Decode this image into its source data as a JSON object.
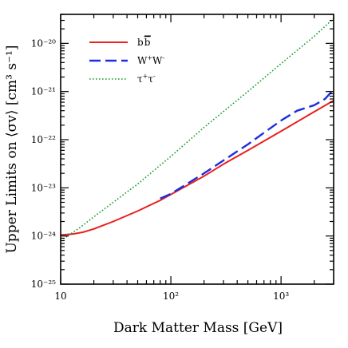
{
  "chart_data": {
    "type": "line",
    "xlabel": "Dark Matter Mass [GeV]",
    "ylabel": "Upper Limits on ⟨σv⟩ [cm³ s⁻¹]",
    "x_scale": "log",
    "y_scale": "log",
    "xlim": [
      10,
      3000
    ],
    "ylim": [
      1e-25,
      4e-20
    ],
    "x_ticks": [
      {
        "value": 10,
        "label": "10"
      },
      {
        "value": 100,
        "label": "10²"
      },
      {
        "value": 1000,
        "label": "10³"
      }
    ],
    "y_ticks": [
      {
        "value": 1e-25,
        "label": "10⁻²⁵"
      },
      {
        "value": 1e-24,
        "label": "10⁻²⁴"
      },
      {
        "value": 1e-23,
        "label": "10⁻²³"
      },
      {
        "value": 1e-22,
        "label": "10⁻²²"
      },
      {
        "value": 1e-21,
        "label": "10⁻²¹"
      },
      {
        "value": 1e-20,
        "label": "10⁻²⁰"
      }
    ],
    "legend_position": "top-left",
    "series": [
      {
        "name": "b̅b",
        "label_main": "b",
        "label_overline": "b",
        "color": "#e8201e",
        "style": "solid",
        "x": [
          10,
          13,
          16,
          20,
          30,
          50,
          80,
          100,
          200,
          300,
          500,
          1000,
          2000,
          3000
        ],
        "y": [
          1.05e-24,
          1.1e-24,
          1.2e-24,
          1.4e-24,
          2e-24,
          3.3e-24,
          5.5e-24,
          7.3e-24,
          1.75e-23,
          3.1e-23,
          6e-23,
          1.5e-22,
          3.8e-22,
          6.5e-22
        ]
      },
      {
        "name": "W⁺W⁻",
        "label_main": "W",
        "color": "#1a2ee0",
        "style": "dashed",
        "x": [
          80,
          100,
          200,
          300,
          500,
          1000,
          1400,
          2000,
          2500,
          3000
        ],
        "y": [
          6e-24,
          7.5e-24,
          2e-23,
          3.7e-23,
          8e-23,
          2.5e-22,
          4e-22,
          5.2e-22,
          7e-22,
          1.1e-21
        ]
      },
      {
        "name": "τ⁺τ⁻",
        "label_main": "τ",
        "color": "#149a2a",
        "style": "dotted",
        "x": [
          10,
          15,
          20,
          30,
          50,
          100,
          200,
          500,
          1000,
          2000,
          3000
        ],
        "y": [
          8e-25,
          1.5e-24,
          2.5e-24,
          5e-24,
          1.2e-23,
          4.5e-23,
          1.8e-22,
          1e-21,
          3.8e-21,
          1.4e-20,
          3.3e-20
        ]
      }
    ]
  }
}
